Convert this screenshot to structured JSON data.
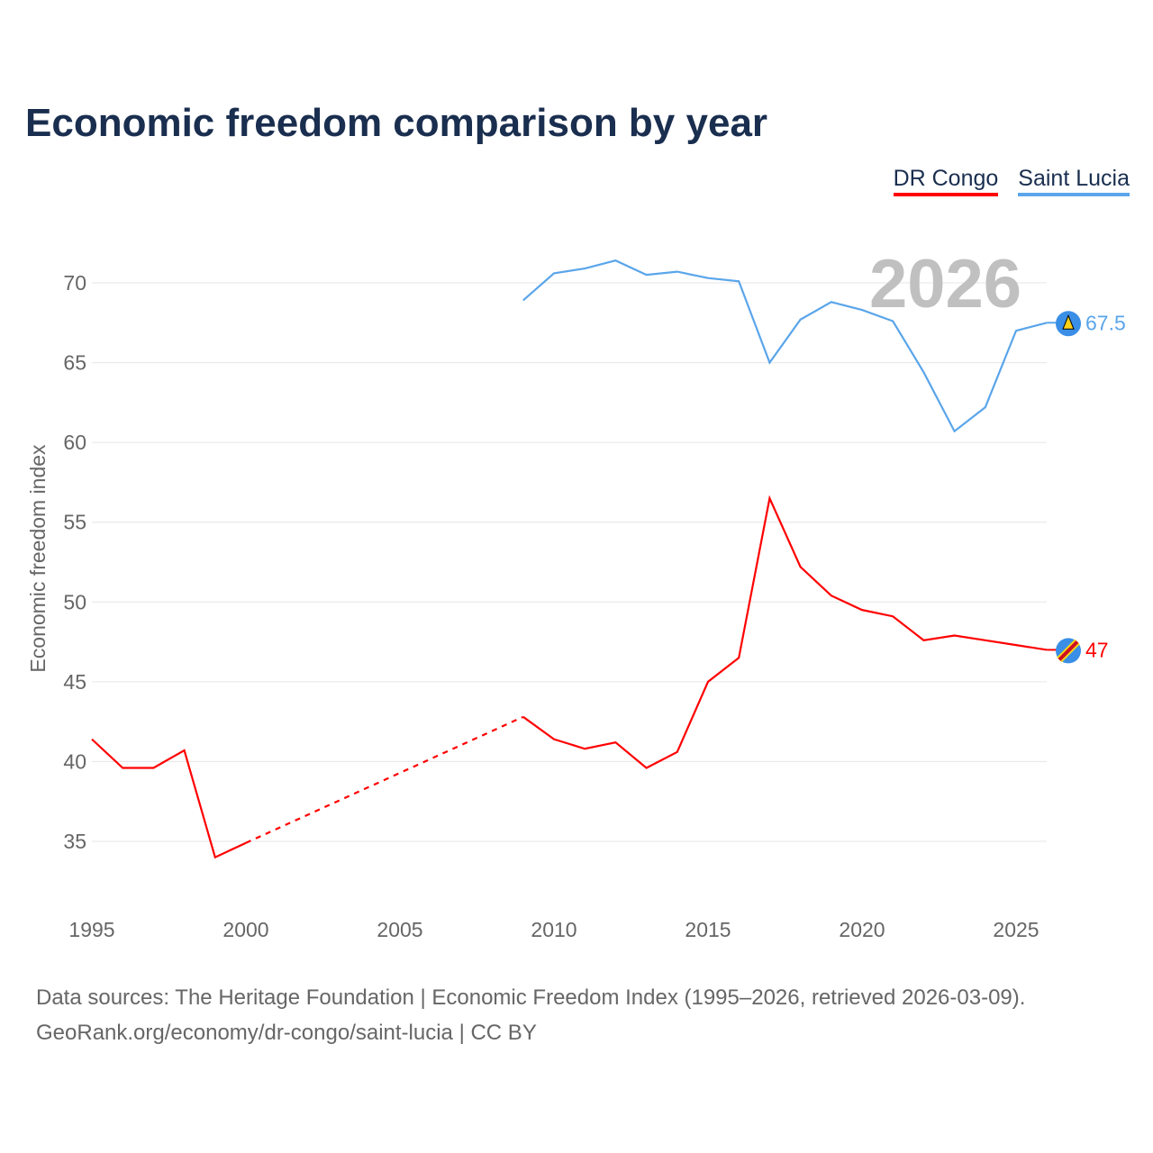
{
  "chart_data": {
    "type": "line",
    "title": "Economic freedom comparison by year",
    "ylabel": "Economic freedom index",
    "xlabel": "",
    "ylim": [
      30.5,
      73.5
    ],
    "xlim": [
      1995,
      2026
    ],
    "yticks": [
      35,
      40,
      45,
      50,
      55,
      60,
      65,
      70
    ],
    "xticks": [
      1995,
      2000,
      2005,
      2010,
      2015,
      2020,
      2025
    ],
    "grid": true,
    "legend_position": "top-right",
    "current_year": "2026",
    "series": [
      {
        "name": "DR Congo",
        "color": "#ff0000",
        "end_label": "47",
        "x": [
          1995,
          1996,
          1997,
          1998,
          1999,
          2000,
          2009,
          2010,
          2011,
          2012,
          2013,
          2014,
          2015,
          2016,
          2017,
          2018,
          2019,
          2020,
          2021,
          2022,
          2023,
          2024,
          2025,
          2026
        ],
        "y": [
          41.4,
          39.6,
          39.6,
          40.7,
          34.0,
          34.9,
          42.8,
          41.4,
          40.8,
          41.2,
          39.6,
          40.6,
          45.0,
          46.5,
          56.5,
          52.2,
          50.4,
          49.5,
          49.1,
          47.6,
          47.9,
          47.6,
          47.3,
          47.0
        ],
        "gap_after_year": 2000
      },
      {
        "name": "Saint Lucia",
        "color": "#5aa5ea",
        "end_label": "67.5",
        "x": [
          2009,
          2010,
          2011,
          2012,
          2013,
          2014,
          2015,
          2016,
          2017,
          2018,
          2019,
          2020,
          2021,
          2022,
          2023,
          2024,
          2025,
          2026
        ],
        "y": [
          68.9,
          70.6,
          70.9,
          71.4,
          70.5,
          70.7,
          70.3,
          70.1,
          65.0,
          67.7,
          68.8,
          68.3,
          67.6,
          64.4,
          60.7,
          62.2,
          67.0,
          67.5
        ]
      }
    ]
  },
  "source_line1": "Data sources: The Heritage Foundation | Economic Freedom Index (1995–2026, retrieved 2026-03-09).",
  "source_line2": "GeoRank.org/economy/dr-congo/saint-lucia | CC BY"
}
